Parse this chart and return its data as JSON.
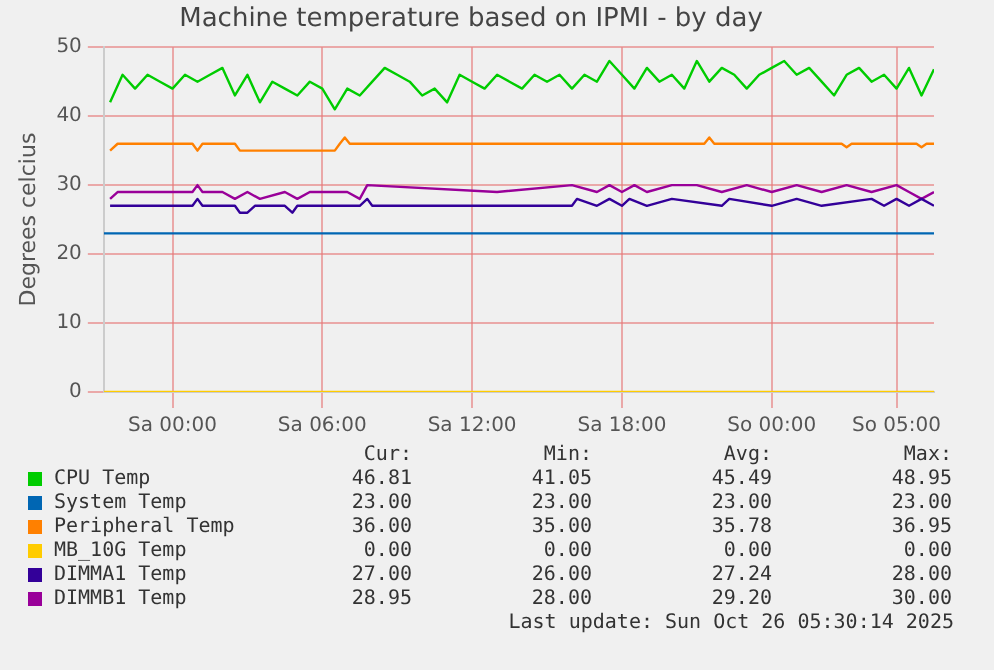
{
  "chart_data": {
    "type": "line",
    "title": "Machine temperature based on IPMI - by day",
    "ylabel": "Degrees celcius",
    "xlim": [
      "2025-10-24T21:15",
      "2025-10-26T06:30"
    ],
    "xticks": [
      {
        "value": "2025-10-25T00:00",
        "label": "Sa 00:00"
      },
      {
        "value": "2025-10-25T06:00",
        "label": "Sa 06:00"
      },
      {
        "value": "2025-10-25T12:00",
        "label": "Sa 12:00"
      },
      {
        "value": "2025-10-25T18:00",
        "label": "Sa 18:00"
      },
      {
        "value": "2025-10-26T00:00",
        "label": "So 00:00"
      },
      {
        "value": "2025-10-26T05:00",
        "label": "So 05:00"
      }
    ],
    "ylim": [
      0,
      50
    ],
    "yticks": [
      0,
      10,
      20,
      30,
      40,
      50
    ],
    "grid": true,
    "legend": "bottom",
    "marker": "none",
    "line_style": "solid",
    "series": [
      {
        "name": "CPU Temp",
        "color": "#00cc00",
        "x": [
          "2025-10-24T21:30",
          "2025-10-24T22:00",
          "2025-10-24T22:30",
          "2025-10-24T23:00",
          "2025-10-24T23:30",
          "2025-10-25T00:00",
          "2025-10-25T00:30",
          "2025-10-25T01:00",
          "2025-10-25T01:30",
          "2025-10-25T02:00",
          "2025-10-25T02:30",
          "2025-10-25T03:00",
          "2025-10-25T03:30",
          "2025-10-25T04:00",
          "2025-10-25T04:30",
          "2025-10-25T05:00",
          "2025-10-25T05:30",
          "2025-10-25T06:00",
          "2025-10-25T06:30",
          "2025-10-25T07:00",
          "2025-10-25T07:30",
          "2025-10-25T08:00",
          "2025-10-25T08:30",
          "2025-10-25T09:00",
          "2025-10-25T09:30",
          "2025-10-25T10:00",
          "2025-10-25T10:30",
          "2025-10-25T11:00",
          "2025-10-25T11:30",
          "2025-10-25T12:00",
          "2025-10-25T12:30",
          "2025-10-25T13:00",
          "2025-10-25T13:30",
          "2025-10-25T14:00",
          "2025-10-25T14:30",
          "2025-10-25T15:00",
          "2025-10-25T15:30",
          "2025-10-25T16:00",
          "2025-10-25T16:30",
          "2025-10-25T17:00",
          "2025-10-25T17:30",
          "2025-10-25T18:00",
          "2025-10-25T18:30",
          "2025-10-25T19:00",
          "2025-10-25T19:30",
          "2025-10-25T20:00",
          "2025-10-25T20:30",
          "2025-10-25T21:00",
          "2025-10-25T21:30",
          "2025-10-25T22:00",
          "2025-10-25T22:30",
          "2025-10-25T23:00",
          "2025-10-25T23:30",
          "2025-10-26T00:00",
          "2025-10-26T00:30",
          "2025-10-26T01:00",
          "2025-10-26T01:30",
          "2025-10-26T02:00",
          "2025-10-26T02:30",
          "2025-10-26T03:00",
          "2025-10-26T03:30",
          "2025-10-26T04:00",
          "2025-10-26T04:30",
          "2025-10-26T05:00",
          "2025-10-26T05:30",
          "2025-10-26T06:00",
          "2025-10-26T06:30"
        ],
        "values": [
          42,
          46,
          44,
          46,
          45,
          44,
          46,
          45,
          46,
          47,
          43,
          46,
          42,
          45,
          44,
          43,
          45,
          44,
          41,
          44,
          43,
          45,
          47,
          46,
          45,
          43,
          44,
          42,
          46,
          45,
          44,
          46,
          45,
          44,
          46,
          45,
          46,
          44,
          46,
          45,
          48,
          46,
          44,
          47,
          45,
          46,
          44,
          48,
          45,
          47,
          46,
          44,
          46,
          47,
          48,
          46,
          47,
          45,
          43,
          46,
          47,
          45,
          46,
          44,
          47,
          43,
          46.8
        ]
      },
      {
        "name": "System Temp",
        "color": "#0066b3",
        "x": [
          "2025-10-24T21:15",
          "2025-10-26T06:30"
        ],
        "values": [
          23,
          23
        ]
      },
      {
        "name": "Peripheral Temp",
        "color": "#ff8000",
        "x": [
          "2025-10-24T21:30",
          "2025-10-24T21:48",
          "2025-10-25T00:48",
          "2025-10-25T01:00",
          "2025-10-25T01:12",
          "2025-10-25T02:30",
          "2025-10-25T02:42",
          "2025-10-25T06:30",
          "2025-10-25T06:42",
          "2025-10-25T06:54",
          "2025-10-25T07:06",
          "2025-10-25T21:18",
          "2025-10-25T21:30",
          "2025-10-25T21:42",
          "2025-10-26T02:48",
          "2025-10-26T03:00",
          "2025-10-26T03:12",
          "2025-10-26T05:48",
          "2025-10-26T06:00",
          "2025-10-26T06:12",
          "2025-10-26T06:30"
        ],
        "values": [
          35,
          36,
          36,
          35,
          36,
          36,
          35,
          35,
          36,
          36.9,
          36,
          36,
          36.9,
          36,
          36,
          35.5,
          36,
          36,
          35.5,
          36,
          36
        ]
      },
      {
        "name": "MB_10G Temp",
        "color": "#ffcc00",
        "x": [
          "2025-10-24T21:15",
          "2025-10-26T06:30"
        ],
        "values": [
          0,
          0
        ]
      },
      {
        "name": "DIMMA1 Temp",
        "color": "#330099",
        "x": [
          "2025-10-24T21:30",
          "2025-10-24T21:48",
          "2025-10-25T00:48",
          "2025-10-25T01:00",
          "2025-10-25T01:12",
          "2025-10-25T02:30",
          "2025-10-25T02:42",
          "2025-10-25T03:00",
          "2025-10-25T03:18",
          "2025-10-25T03:36",
          "2025-10-25T04:30",
          "2025-10-25T04:48",
          "2025-10-25T05:00",
          "2025-10-25T07:30",
          "2025-10-25T07:48",
          "2025-10-25T08:00",
          "2025-10-25T16:00",
          "2025-10-25T16:12",
          "2025-10-25T17:00",
          "2025-10-25T17:30",
          "2025-10-25T18:00",
          "2025-10-25T18:18",
          "2025-10-25T19:00",
          "2025-10-25T20:00",
          "2025-10-25T22:00",
          "2025-10-25T22:18",
          "2025-10-26T00:00",
          "2025-10-26T01:00",
          "2025-10-26T02:00",
          "2025-10-26T04:00",
          "2025-10-26T04:30",
          "2025-10-26T05:00",
          "2025-10-26T05:30",
          "2025-10-26T06:00",
          "2025-10-26T06:30"
        ],
        "values": [
          27,
          27,
          27,
          28,
          27,
          27,
          26,
          26,
          27,
          27,
          27,
          26,
          27,
          27,
          28,
          27,
          27,
          28,
          27,
          28,
          27,
          28,
          27,
          28,
          27,
          28,
          27,
          28,
          27,
          28,
          27,
          28,
          27,
          28,
          27
        ]
      },
      {
        "name": "DIMMB1 Temp",
        "color": "#990099",
        "x": [
          "2025-10-24T21:30",
          "2025-10-24T21:48",
          "2025-10-25T00:48",
          "2025-10-25T01:00",
          "2025-10-25T01:12",
          "2025-10-25T02:00",
          "2025-10-25T02:30",
          "2025-10-25T03:00",
          "2025-10-25T03:30",
          "2025-10-25T04:30",
          "2025-10-25T05:00",
          "2025-10-25T05:30",
          "2025-10-25T07:00",
          "2025-10-25T07:30",
          "2025-10-25T07:48",
          "2025-10-25T13:00",
          "2025-10-25T16:00",
          "2025-10-25T17:00",
          "2025-10-25T17:30",
          "2025-10-25T18:00",
          "2025-10-25T18:30",
          "2025-10-25T19:00",
          "2025-10-25T20:00",
          "2025-10-25T21:00",
          "2025-10-25T22:00",
          "2025-10-25T23:00",
          "2025-10-26T00:00",
          "2025-10-26T01:00",
          "2025-10-26T02:00",
          "2025-10-26T03:00",
          "2025-10-26T04:00",
          "2025-10-26T05:00",
          "2025-10-26T05:30",
          "2025-10-26T06:00",
          "2025-10-26T06:30"
        ],
        "values": [
          28,
          29,
          29,
          30,
          29,
          29,
          28,
          29,
          28,
          29,
          28,
          29,
          29,
          28,
          30,
          29,
          30,
          29,
          30,
          29,
          30,
          29,
          30,
          30,
          29,
          30,
          29,
          30,
          29,
          30,
          29,
          30,
          29,
          28,
          29
        ]
      }
    ],
    "annotations": [
      "Cur:",
      "Min:",
      "Avg:",
      "Max:",
      "46.81",
      "41.05",
      "45.49",
      "48.95",
      "23.00",
      "23.00",
      "23.00",
      "23.00",
      "36.00",
      "35.00",
      "35.78",
      "36.95",
      "0.00",
      "0.00",
      "0.00",
      "0.00",
      "27.00",
      "26.00",
      "27.24",
      "28.00",
      "28.95",
      "28.00",
      "29.20",
      "30.00",
      "Last update: Sun Oct 26 05:30:14 2025"
    ]
  }
}
